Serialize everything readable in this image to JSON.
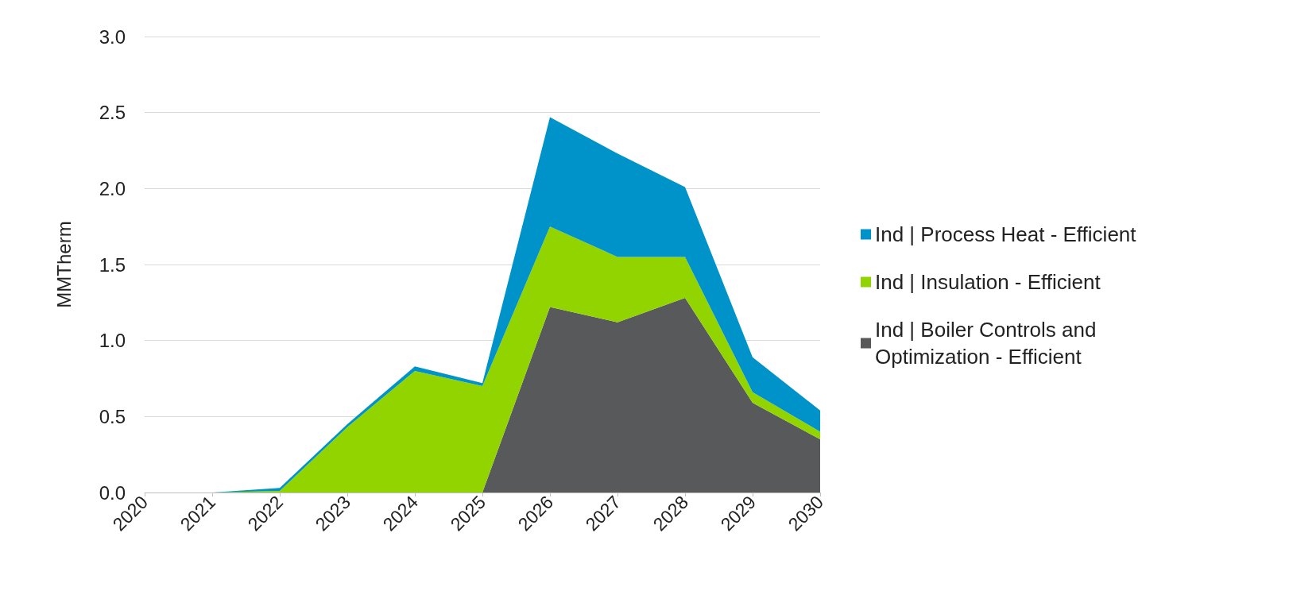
{
  "chart_data": {
    "type": "area",
    "stacked": true,
    "ylabel": "MMTherm",
    "categories": [
      "2020",
      "2021",
      "2022",
      "2023",
      "2024",
      "2025",
      "2026",
      "2027",
      "2028",
      "2029",
      "2030"
    ],
    "series": [
      {
        "name": "Ind | Boiler Controls and Optimization - Efficient",
        "color": "#58595b",
        "values": [
          0,
          0,
          0,
          0,
          0,
          0,
          1.22,
          1.12,
          1.28,
          0.59,
          0.35
        ]
      },
      {
        "name": "Ind | Insulation - Efficient",
        "color": "#92d400",
        "values": [
          0,
          0,
          0.01,
          0.43,
          0.8,
          0.7,
          0.53,
          0.43,
          0.27,
          0.07,
          0.05
        ]
      },
      {
        "name": "Ind | Process Heat - Efficient",
        "color": "#0093c9",
        "values": [
          0,
          0,
          0.02,
          0.02,
          0.03,
          0.02,
          0.72,
          0.68,
          0.46,
          0.23,
          0.14
        ]
      }
    ],
    "ylim": [
      0,
      3
    ],
    "yticks": [
      {
        "value": 0,
        "label": "0.0"
      },
      0.5,
      {
        "value": 1,
        "label": "1.0"
      },
      1.5,
      {
        "value": 2,
        "label": "2.0"
      },
      2.5,
      {
        "value": 3,
        "label": "3.0"
      }
    ],
    "grid": "y",
    "legend": "right",
    "marker": "none"
  }
}
